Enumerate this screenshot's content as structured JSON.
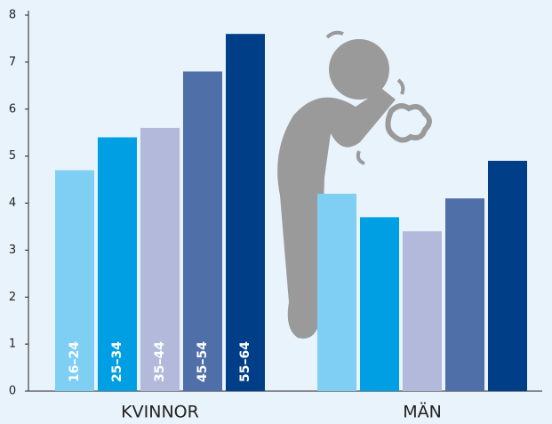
{
  "chart_data": {
    "type": "bar",
    "categories": [
      "KVINNOR",
      "MÄN"
    ],
    "series": [
      {
        "name": "16–24",
        "color": "#7fcff5",
        "values": [
          4.7,
          4.2
        ]
      },
      {
        "name": "25–34",
        "color": "#009fe3",
        "values": [
          5.4,
          3.7
        ]
      },
      {
        "name": "35–44",
        "color": "#b3b9db",
        "values": [
          5.6,
          3.4
        ]
      },
      {
        "name": "45–54",
        "color": "#4f6fa8",
        "values": [
          6.8,
          4.1
        ]
      },
      {
        "name": "55–64",
        "color": "#003f87",
        "values": [
          7.6,
          4.9
        ]
      }
    ],
    "ylim": [
      0,
      8
    ],
    "yticks": [
      0,
      1,
      2,
      3,
      4,
      5,
      6,
      7,
      8
    ]
  }
}
